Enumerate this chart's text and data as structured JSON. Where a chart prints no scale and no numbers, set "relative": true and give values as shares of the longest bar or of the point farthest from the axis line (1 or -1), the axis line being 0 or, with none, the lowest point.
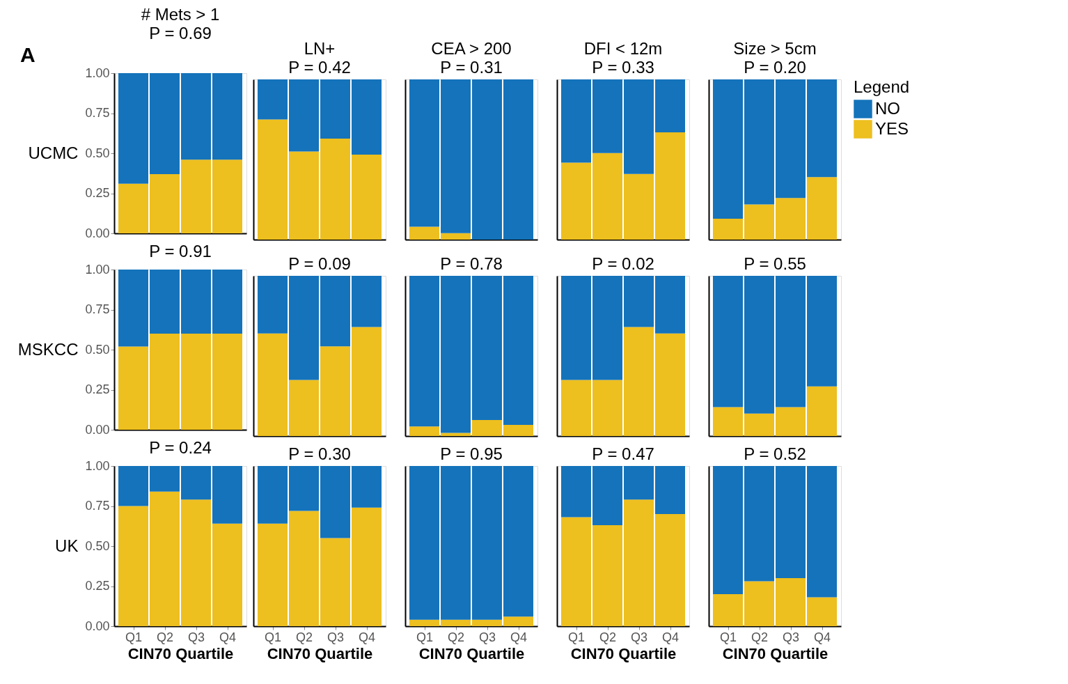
{
  "chart_data": [
    {
      "type": "bar",
      "stacked": true,
      "title": "# Mets > 1",
      "subtitle": "P = 0.69",
      "ylabel": "UCMC",
      "annotations": [
        "A"
      ],
      "categories": [
        null,
        null,
        null,
        null
      ],
      "ylim": [
        0,
        1
      ],
      "yticks": [
        {
          "value": 0,
          "label": "0.00"
        },
        {
          "value": 0.25,
          "label": "0.25"
        },
        {
          "value": 0.5,
          "label": "0.50"
        },
        {
          "value": 0.75,
          "label": "0.75"
        },
        {
          "value": 1,
          "label": "1.00"
        }
      ],
      "tick_labels": "y",
      "series": [
        {
          "color": "#edbf1f",
          "values": [
            0.31,
            0.37,
            0.46,
            0.46
          ]
        },
        {
          "color": "#1473ba",
          "values": [
            0.69,
            0.63,
            0.54,
            0.54
          ]
        }
      ]
    },
    {
      "type": "bar",
      "stacked": true,
      "relative": true,
      "title": "LN+",
      "subtitle": "P = 0.42",
      "categories": [
        null,
        null,
        null,
        null
      ],
      "tick_labels": false,
      "series": [
        {
          "color": "#edbf1f",
          "values": [
            0.75,
            0.55,
            0.63,
            0.53
          ]
        },
        {
          "color": "#1473ba",
          "values": [
            0.25,
            0.45,
            0.37,
            0.47
          ]
        }
      ]
    },
    {
      "type": "bar",
      "stacked": true,
      "relative": true,
      "title": "CEA > 200",
      "subtitle": "P = 0.31",
      "categories": [
        null,
        null,
        null,
        null
      ],
      "tick_labels": false,
      "series": [
        {
          "color": "#edbf1f",
          "values": [
            0.08,
            0.04,
            0,
            0
          ]
        },
        {
          "color": "#1473ba",
          "values": [
            0.92,
            0.96,
            1,
            1
          ]
        }
      ]
    },
    {
      "type": "bar",
      "stacked": true,
      "relative": true,
      "title": "DFI < 12m",
      "subtitle": "P = 0.33",
      "categories": [
        null,
        null,
        null,
        null
      ],
      "tick_labels": false,
      "series": [
        {
          "color": "#edbf1f",
          "values": [
            0.48,
            0.54,
            0.41,
            0.67
          ]
        },
        {
          "color": "#1473ba",
          "values": [
            0.52,
            0.46,
            0.59,
            0.33
          ]
        }
      ]
    },
    {
      "type": "bar",
      "stacked": true,
      "relative": true,
      "title": "Size > 5cm",
      "subtitle": "P = 0.20",
      "legend_title": "Legend",
      "legend": "right",
      "categories": [
        null,
        null,
        null,
        null
      ],
      "tick_labels": false,
      "series": [
        {
          "name": "YES",
          "color": "#edbf1f",
          "values": [
            0.13,
            0.22,
            0.26,
            0.39
          ]
        },
        {
          "name": "NO",
          "color": "#1473ba",
          "values": [
            0.87,
            0.78,
            0.74,
            0.61
          ]
        }
      ]
    },
    {
      "type": "bar",
      "stacked": true,
      "subtitle": "P = 0.91",
      "ylabel": "MSKCC",
      "categories": [
        null,
        null,
        null,
        null
      ],
      "ylim": [
        0,
        1
      ],
      "yticks": [
        {
          "value": 0,
          "label": "0.00"
        },
        {
          "value": 0.25,
          "label": "0.25"
        },
        {
          "value": 0.5,
          "label": "0.50"
        },
        {
          "value": 0.75,
          "label": "0.75"
        },
        {
          "value": 1,
          "label": "1.00"
        }
      ],
      "tick_labels": "y",
      "series": [
        {
          "color": "#edbf1f",
          "values": [
            0.52,
            0.6,
            0.6,
            0.6
          ]
        },
        {
          "color": "#1473ba",
          "values": [
            0.48,
            0.4,
            0.4,
            0.4
          ]
        }
      ]
    },
    {
      "type": "bar",
      "stacked": true,
      "relative": true,
      "subtitle": "P = 0.09",
      "categories": [
        null,
        null,
        null,
        null
      ],
      "tick_labels": false,
      "series": [
        {
          "color": "#edbf1f",
          "values": [
            0.64,
            0.35,
            0.56,
            0.68
          ]
        },
        {
          "color": "#1473ba",
          "values": [
            0.36,
            0.65,
            0.44,
            0.32
          ]
        }
      ]
    },
    {
      "type": "bar",
      "stacked": true,
      "relative": true,
      "subtitle": "P = 0.78",
      "categories": [
        null,
        null,
        null,
        null
      ],
      "tick_labels": false,
      "series": [
        {
          "color": "#edbf1f",
          "values": [
            0.06,
            0.02,
            0.1,
            0.07
          ]
        },
        {
          "color": "#1473ba",
          "values": [
            0.94,
            0.98,
            0.9,
            0.93
          ]
        }
      ]
    },
    {
      "type": "bar",
      "stacked": true,
      "relative": true,
      "subtitle": "P = 0.02",
      "categories": [
        null,
        null,
        null,
        null
      ],
      "tick_labels": false,
      "series": [
        {
          "color": "#edbf1f",
          "values": [
            0.35,
            0.35,
            0.68,
            0.64
          ]
        },
        {
          "color": "#1473ba",
          "values": [
            0.65,
            0.65,
            0.32,
            0.36
          ]
        }
      ]
    },
    {
      "type": "bar",
      "stacked": true,
      "relative": true,
      "subtitle": "P = 0.55",
      "categories": [
        null,
        null,
        null,
        null
      ],
      "tick_labels": false,
      "series": [
        {
          "color": "#edbf1f",
          "values": [
            0.18,
            0.14,
            0.18,
            0.31
          ]
        },
        {
          "color": "#1473ba",
          "values": [
            0.82,
            0.86,
            0.82,
            0.69
          ]
        }
      ]
    },
    {
      "type": "bar",
      "stacked": true,
      "subtitle": "P = 0.24",
      "ylabel": "UK",
      "xlabel": "CIN70 Quartile",
      "categories": [
        "Q1",
        "Q2",
        "Q3",
        "Q4"
      ],
      "ylim": [
        0,
        1
      ],
      "yticks": [
        {
          "value": 0,
          "label": "0.00"
        },
        {
          "value": 0.25,
          "label": "0.25"
        },
        {
          "value": 0.5,
          "label": "0.50"
        },
        {
          "value": 0.75,
          "label": "0.75"
        },
        {
          "value": 1,
          "label": "1.00"
        }
      ],
      "series": [
        {
          "color": "#edbf1f",
          "values": [
            0.75,
            0.84,
            0.79,
            0.64
          ]
        },
        {
          "color": "#1473ba",
          "values": [
            0.25,
            0.16,
            0.21,
            0.36
          ]
        }
      ]
    },
    {
      "type": "bar",
      "stacked": true,
      "relative": true,
      "subtitle": "P = 0.30",
      "xlabel": "CIN70 Quartile",
      "categories": [
        "Q1",
        "Q2",
        "Q3",
        "Q4"
      ],
      "tick_labels": "x",
      "series": [
        {
          "color": "#edbf1f",
          "values": [
            0.64,
            0.72,
            0.55,
            0.74
          ]
        },
        {
          "color": "#1473ba",
          "values": [
            0.36,
            0.28,
            0.45,
            0.26
          ]
        }
      ]
    },
    {
      "type": "bar",
      "stacked": true,
      "relative": true,
      "subtitle": "P = 0.95",
      "xlabel": "CIN70 Quartile",
      "categories": [
        "Q1",
        "Q2",
        "Q3",
        "Q4"
      ],
      "tick_labels": "x",
      "series": [
        {
          "color": "#edbf1f",
          "values": [
            0.04,
            0.04,
            0.04,
            0.06
          ]
        },
        {
          "color": "#1473ba",
          "values": [
            0.96,
            0.96,
            0.96,
            0.94
          ]
        }
      ]
    },
    {
      "type": "bar",
      "stacked": true,
      "relative": true,
      "subtitle": "P = 0.47",
      "xlabel": "CIN70 Quartile",
      "categories": [
        "Q1",
        "Q2",
        "Q3",
        "Q4"
      ],
      "tick_labels": "x",
      "series": [
        {
          "color": "#edbf1f",
          "values": [
            0.68,
            0.63,
            0.79,
            0.7
          ]
        },
        {
          "color": "#1473ba",
          "values": [
            0.32,
            0.37,
            0.21,
            0.3
          ]
        }
      ]
    },
    {
      "type": "bar",
      "stacked": true,
      "relative": true,
      "subtitle": "P = 0.52",
      "xlabel": "CIN70 Quartile",
      "categories": [
        "Q1",
        "Q2",
        "Q3",
        "Q4"
      ],
      "tick_labels": "x",
      "series": [
        {
          "color": "#edbf1f",
          "values": [
            0.2,
            0.28,
            0.3,
            0.18
          ]
        },
        {
          "color": "#1473ba",
          "values": [
            0.8,
            0.72,
            0.7,
            0.82
          ]
        }
      ]
    }
  ]
}
